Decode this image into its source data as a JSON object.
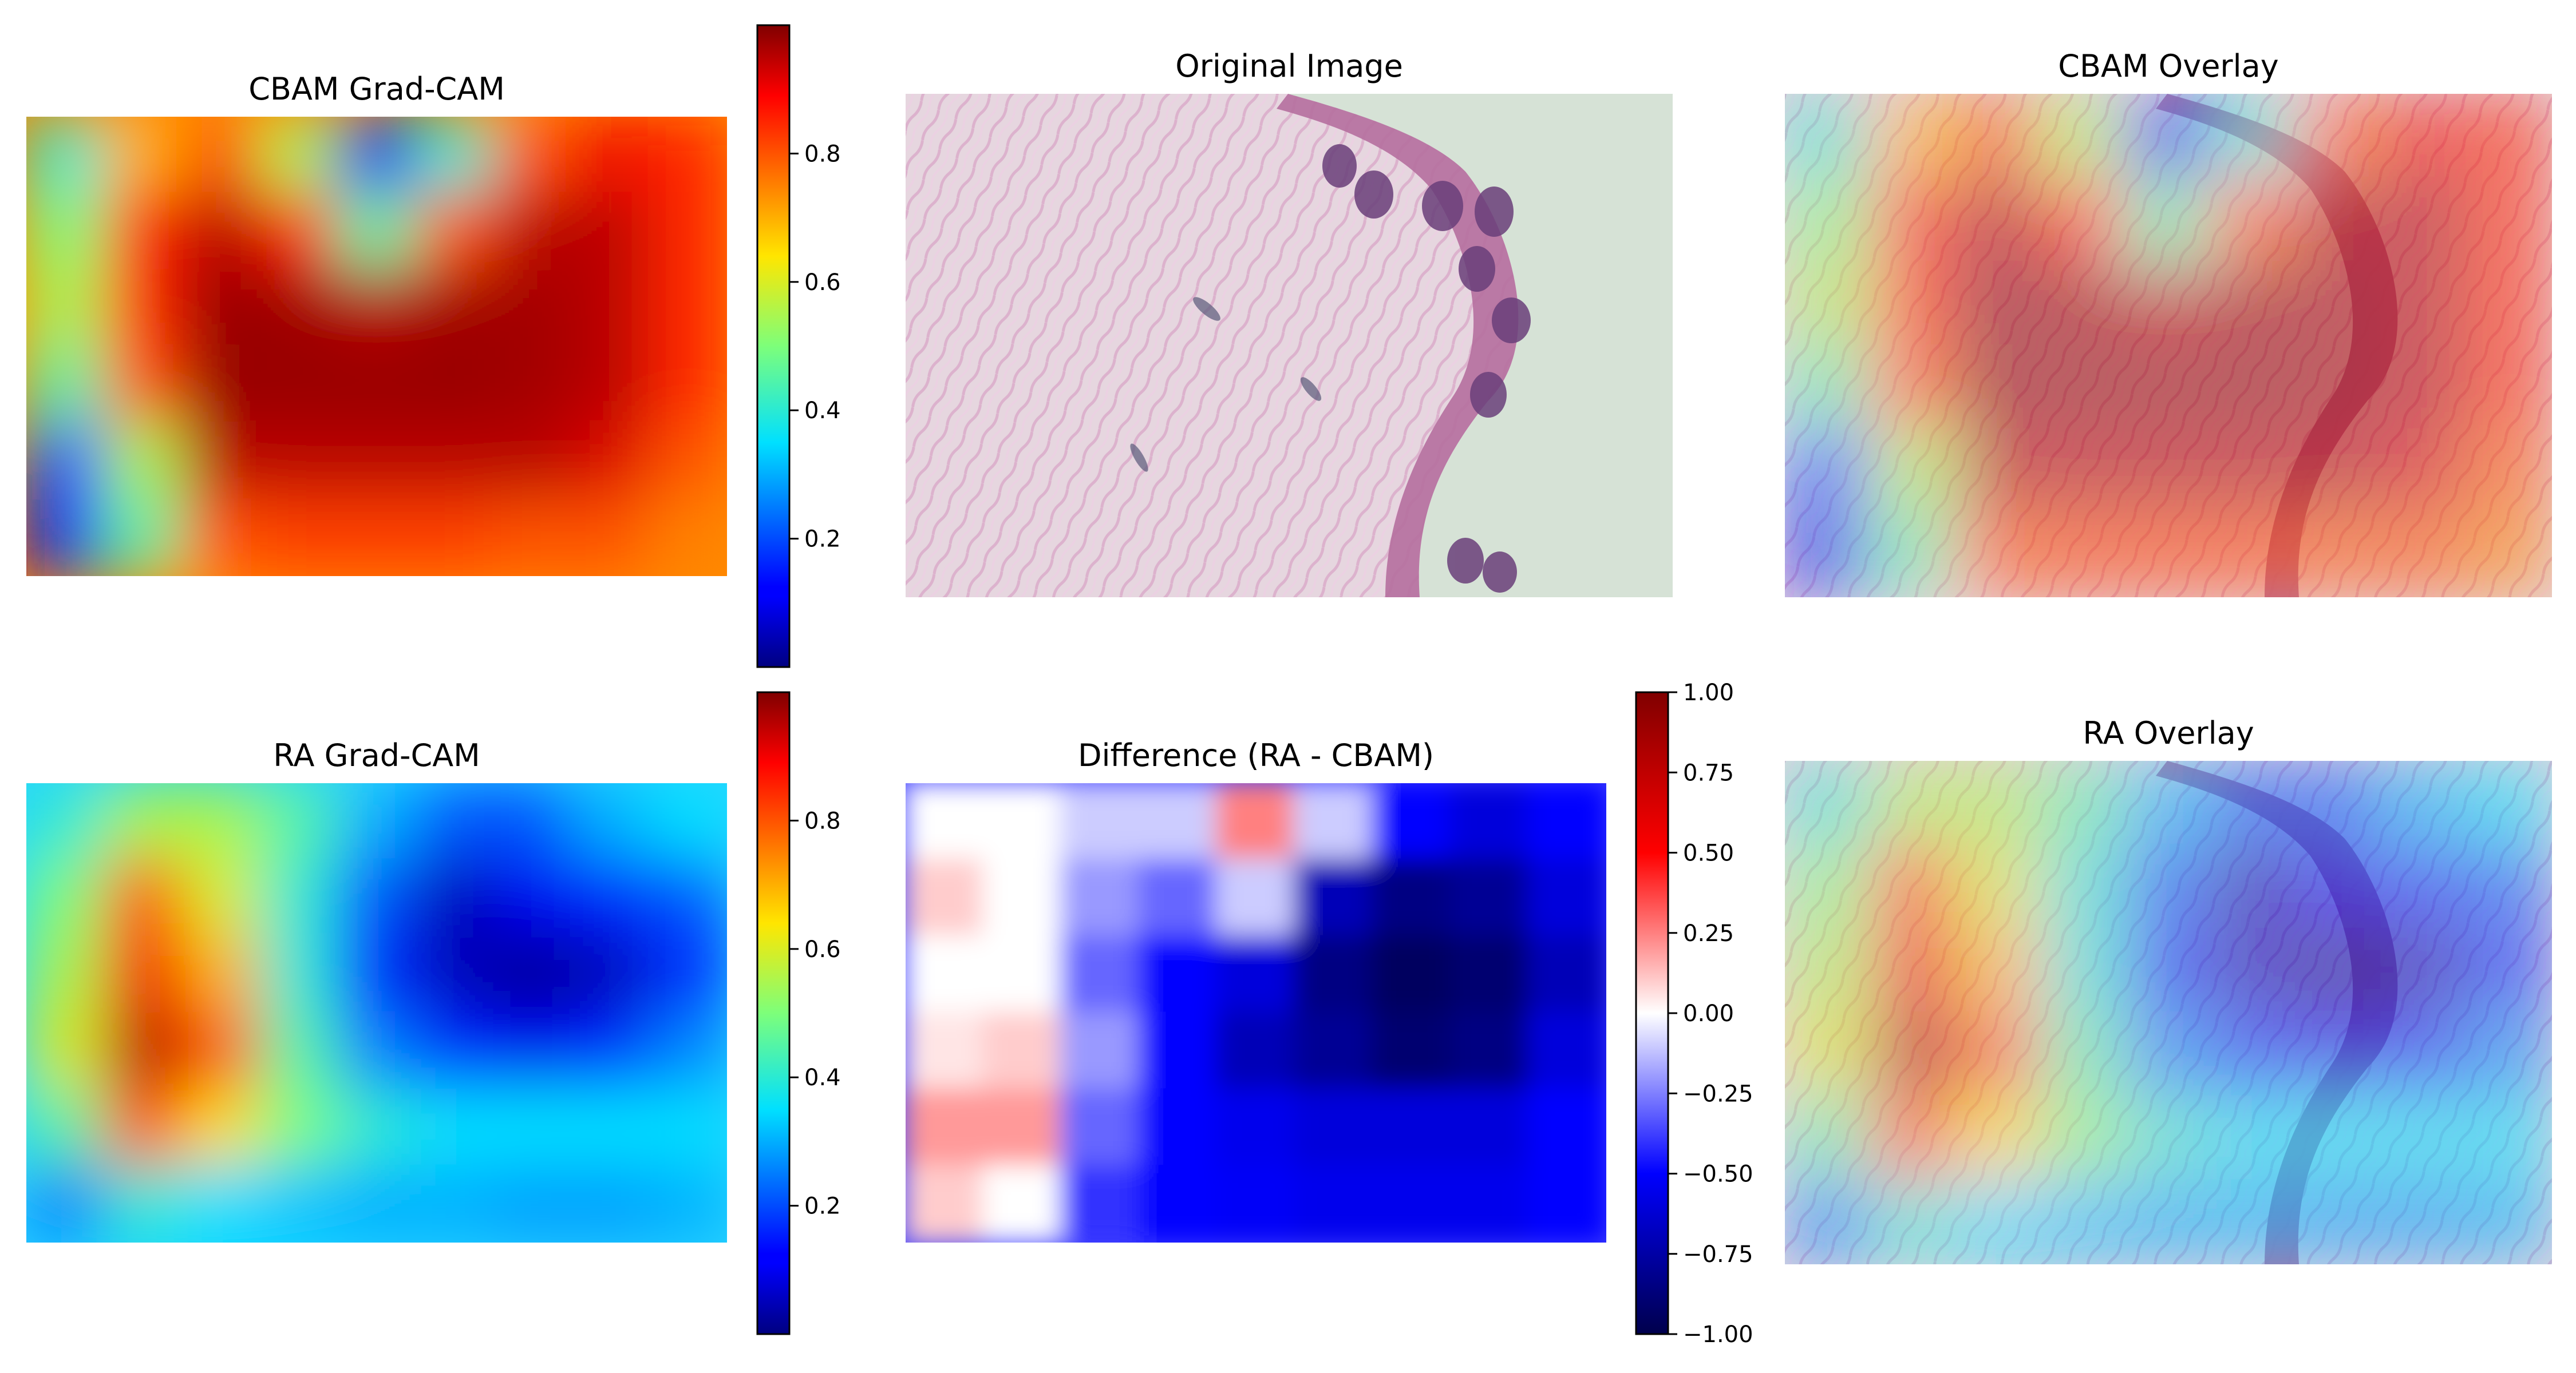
{
  "figure": {
    "panels": [
      {
        "id": "cbam_gradcam",
        "title": "CBAM Grad-CAM",
        "kind": "heatmap",
        "cmap": "jet"
      },
      {
        "id": "original",
        "title": "Original Image",
        "kind": "image"
      },
      {
        "id": "cbam_overlay",
        "title": "CBAM Overlay",
        "kind": "overlay"
      },
      {
        "id": "ra_gradcam",
        "title": "RA Grad-CAM",
        "kind": "heatmap",
        "cmap": "jet"
      },
      {
        "id": "difference",
        "title": "Difference (RA - CBAM)",
        "kind": "heatmap",
        "cmap": "seismic"
      },
      {
        "id": "ra_overlay",
        "title": "RA Overlay",
        "kind": "overlay"
      }
    ],
    "colorbars": [
      {
        "for": "cbam_gradcam",
        "cmap": "jet",
        "range": [
          0.0,
          1.0
        ],
        "ticks": [
          "0.2",
          "0.4",
          "0.6",
          "0.8"
        ]
      },
      {
        "for": "ra_gradcam",
        "cmap": "jet",
        "range": [
          0.0,
          1.0
        ],
        "ticks": [
          "0.2",
          "0.4",
          "0.6",
          "0.8"
        ]
      },
      {
        "for": "difference",
        "cmap": "seismic",
        "range": [
          -1.0,
          1.0
        ],
        "ticks": [
          "1.00",
          "0.75",
          "0.50",
          "0.25",
          "0.00",
          "−0.25",
          "−0.50",
          "−0.75",
          "−1.00"
        ]
      }
    ]
  },
  "chart_data": [
    {
      "type": "heatmap",
      "title": "CBAM Grad-CAM",
      "colormap": "jet",
      "value_range": [
        0,
        1
      ],
      "grid_rows": 6,
      "grid_cols": 9,
      "values": [
        [
          0.4,
          0.7,
          0.8,
          0.55,
          0.1,
          0.4,
          0.8,
          0.9,
          0.85
        ],
        [
          0.5,
          0.85,
          0.95,
          0.85,
          0.45,
          0.8,
          0.95,
          0.95,
          0.85
        ],
        [
          0.55,
          0.85,
          0.98,
          0.97,
          0.95,
          0.97,
          0.97,
          0.95,
          0.85
        ],
        [
          0.45,
          0.8,
          0.98,
          0.98,
          0.98,
          0.98,
          0.97,
          0.95,
          0.85
        ],
        [
          0.2,
          0.55,
          0.95,
          0.95,
          0.95,
          0.95,
          0.95,
          0.92,
          0.8
        ],
        [
          0.1,
          0.45,
          0.8,
          0.82,
          0.82,
          0.82,
          0.8,
          0.8,
          0.75
        ]
      ]
    },
    {
      "type": "heatmap",
      "title": "RA Grad-CAM",
      "colormap": "jet",
      "value_range": [
        0,
        1
      ],
      "grid_rows": 6,
      "grid_cols": 9,
      "values": [
        [
          0.4,
          0.55,
          0.55,
          0.45,
          0.3,
          0.2,
          0.2,
          0.3,
          0.35
        ],
        [
          0.5,
          0.8,
          0.6,
          0.4,
          0.2,
          0.05,
          0.1,
          0.15,
          0.2
        ],
        [
          0.55,
          0.9,
          0.7,
          0.4,
          0.15,
          0.05,
          0.02,
          0.05,
          0.15
        ],
        [
          0.6,
          0.95,
          0.8,
          0.45,
          0.25,
          0.15,
          0.1,
          0.15,
          0.25
        ],
        [
          0.45,
          0.8,
          0.65,
          0.5,
          0.4,
          0.35,
          0.35,
          0.35,
          0.35
        ],
        [
          0.25,
          0.4,
          0.35,
          0.32,
          0.3,
          0.3,
          0.28,
          0.28,
          0.3
        ]
      ]
    },
    {
      "type": "heatmap",
      "title": "Difference (RA - CBAM)",
      "colormap": "seismic",
      "value_range": [
        -1,
        1
      ],
      "grid_rows": 6,
      "grid_cols": 9,
      "values": [
        [
          0.0,
          0.0,
          -0.1,
          -0.1,
          0.25,
          -0.1,
          -0.5,
          -0.6,
          -0.5
        ],
        [
          0.1,
          0.0,
          -0.2,
          -0.3,
          -0.1,
          -0.7,
          -0.85,
          -0.8,
          -0.6
        ],
        [
          0.0,
          0.0,
          -0.3,
          -0.5,
          -0.6,
          -0.85,
          -0.95,
          -0.9,
          -0.7
        ],
        [
          0.05,
          0.1,
          -0.2,
          -0.5,
          -0.7,
          -0.8,
          -0.9,
          -0.85,
          -0.6
        ],
        [
          0.2,
          0.2,
          -0.3,
          -0.5,
          -0.55,
          -0.6,
          -0.6,
          -0.6,
          -0.5
        ],
        [
          0.1,
          0.0,
          -0.4,
          -0.5,
          -0.52,
          -0.55,
          -0.55,
          -0.55,
          -0.5
        ]
      ]
    }
  ]
}
